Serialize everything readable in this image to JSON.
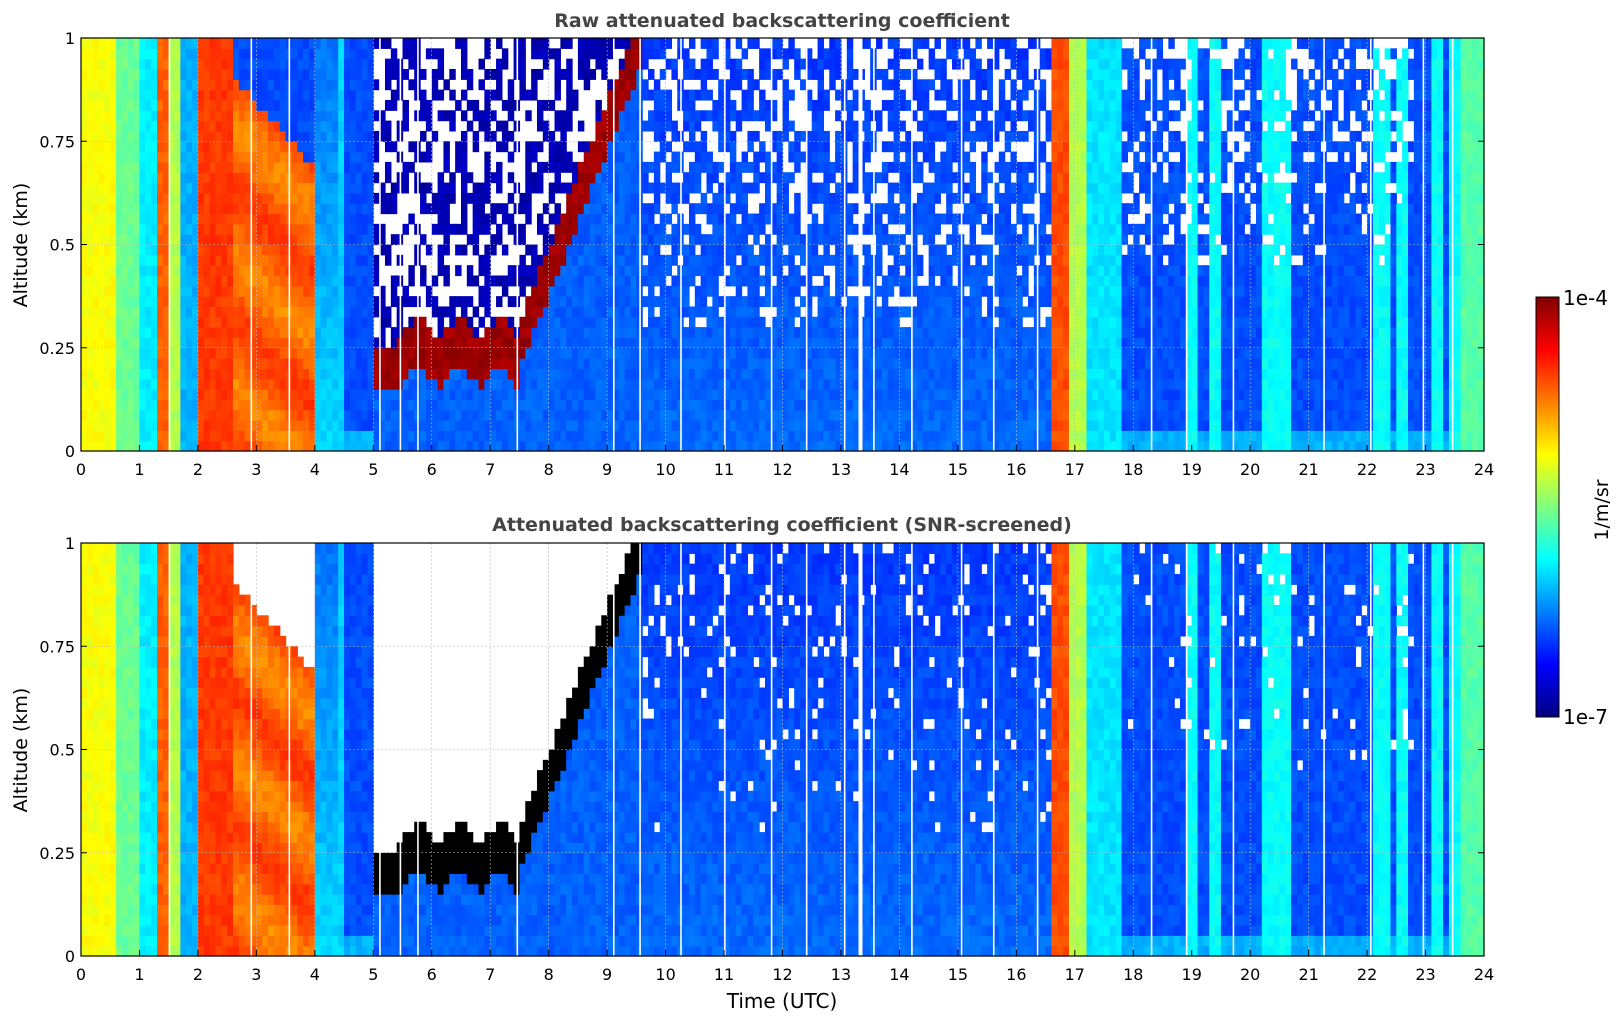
{
  "colors": {
    "colormap": [
      "#00007f",
      "#0000ff",
      "#007fff",
      "#00ffff",
      "#7fff7f",
      "#ffff00",
      "#ff7f00",
      "#ff0000",
      "#7f0000"
    ],
    "background": "#ffffff",
    "axis": "#000000",
    "title": "#444444",
    "grid": "#bbbbbb"
  },
  "chart_data": [
    {
      "type": "heatmap",
      "title": "Raw attenuated backscattering coefficient",
      "xlabel": "",
      "ylabel": "Altitude (km)",
      "xlim": [
        0,
        24
      ],
      "ylim": [
        0,
        1
      ],
      "x_ticks": [
        "0",
        "1",
        "2",
        "3",
        "4",
        "5",
        "6",
        "7",
        "8",
        "9",
        "10",
        "11",
        "12",
        "13",
        "14",
        "15",
        "16",
        "17",
        "18",
        "19",
        "20",
        "21",
        "22",
        "23",
        "24"
      ],
      "y_ticks": [
        "0",
        "0.25",
        "0.5",
        "0.75",
        "1"
      ],
      "grid": true,
      "screened": false
    },
    {
      "type": "heatmap",
      "title": "Attenuated backscattering coefficient (SNR-screened)",
      "xlabel": "Time (UTC)",
      "ylabel": "Altitude (km)",
      "xlim": [
        0,
        24
      ],
      "ylim": [
        0,
        1
      ],
      "x_ticks": [
        "0",
        "1",
        "2",
        "3",
        "4",
        "5",
        "6",
        "7",
        "8",
        "9",
        "10",
        "11",
        "12",
        "13",
        "14",
        "15",
        "16",
        "17",
        "18",
        "19",
        "20",
        "21",
        "22",
        "23",
        "24"
      ],
      "y_ticks": [
        "0",
        "0.25",
        "0.5",
        "0.75",
        "1"
      ],
      "grid": true,
      "screened": true
    }
  ],
  "colorbar": {
    "label": "1/m/sr",
    "max_label": "1e-4",
    "min_label": "1e-7",
    "scale": "log",
    "range": [
      1e-07,
      0.0001
    ]
  }
}
